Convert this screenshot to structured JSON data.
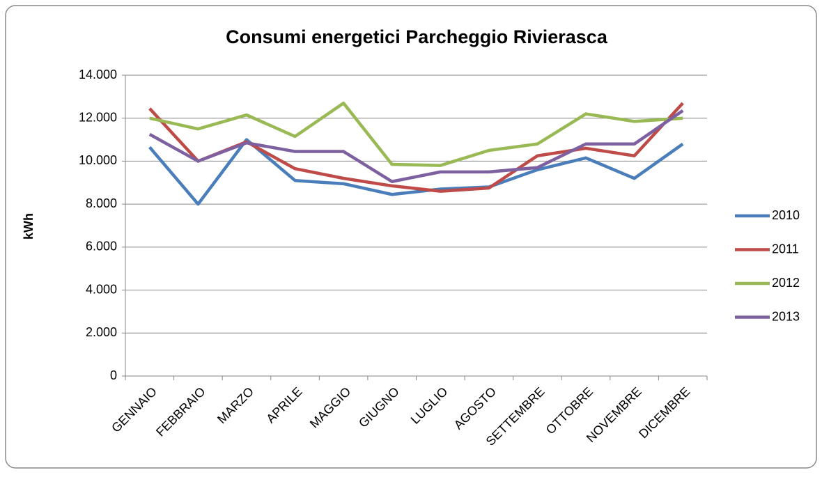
{
  "chart_data": {
    "type": "line",
    "title": "Consumi energetici Parcheggio Rivierasca",
    "y_label": "kWh",
    "categories": [
      "GENNAIO",
      "FEBBRAIO",
      "MARZO",
      "APRILE",
      "MAGGIO",
      "GIUGNO",
      "LUGLIO",
      "AGOSTO",
      "SETTEMBRE",
      "OTTOBRE",
      "NOVEMBRE",
      "DICEMBRE"
    ],
    "series": [
      {
        "name": "2010",
        "color": "#4a7ebb",
        "values": [
          10650,
          8000,
          11000,
          9100,
          8950,
          8450,
          8700,
          8800,
          9600,
          10150,
          9200,
          10800
        ]
      },
      {
        "name": "2011",
        "color": "#be4b48",
        "values": [
          12450,
          10000,
          10900,
          9650,
          9200,
          8850,
          8600,
          8750,
          10250,
          10600,
          10250,
          12700
        ]
      },
      {
        "name": "2012",
        "color": "#98b954",
        "values": [
          12000,
          11500,
          12150,
          11150,
          12700,
          9850,
          9800,
          10500,
          10800,
          12200,
          11850,
          12000
        ]
      },
      {
        "name": "2013",
        "color": "#7d60a0",
        "values": [
          11250,
          10000,
          10850,
          10450,
          10450,
          9050,
          9500,
          9500,
          9700,
          10800,
          10800,
          12350
        ]
      }
    ],
    "ylim": [
      0,
      14000
    ],
    "yticks": [
      0,
      {
        "value": 2000,
        "label": "2.000"
      },
      {
        "value": 4000,
        "label": "4.000"
      },
      {
        "value": 6000,
        "label": "6.000"
      },
      {
        "value": 8000,
        "label": "8.000"
      },
      {
        "value": 10000,
        "label": "10.000"
      },
      {
        "value": 12000,
        "label": "12.000"
      },
      {
        "value": 14000,
        "label": "14.000"
      }
    ],
    "grid": true,
    "legend": "right"
  }
}
